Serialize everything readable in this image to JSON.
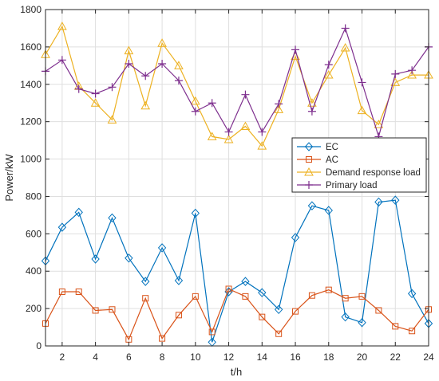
{
  "chart_data": {
    "type": "line",
    "title": "",
    "xlabel": "t/h",
    "ylabel": "Power/kW",
    "xlim": [
      1,
      24
    ],
    "ylim": [
      0,
      1800
    ],
    "x_ticks": [
      2,
      4,
      6,
      8,
      10,
      12,
      14,
      16,
      18,
      20,
      22,
      24
    ],
    "y_ticks": [
      0,
      200,
      400,
      600,
      800,
      1000,
      1200,
      1400,
      1600,
      1800
    ],
    "grid": true,
    "legend_position": "inside right, middle",
    "x": [
      1,
      2,
      3,
      4,
      5,
      6,
      7,
      8,
      9,
      10,
      11,
      12,
      13,
      14,
      15,
      16,
      17,
      18,
      19,
      20,
      21,
      22,
      23,
      24
    ],
    "series": [
      {
        "name": "EC",
        "color": "#0072BD",
        "marker": "diamond",
        "values": [
          455,
          635,
          715,
          465,
          685,
          470,
          345,
          525,
          350,
          710,
          20,
          290,
          345,
          285,
          195,
          580,
          750,
          725,
          155,
          125,
          770,
          780,
          280,
          120
        ]
      },
      {
        "name": "AC",
        "color": "#D95319",
        "marker": "square",
        "values": [
          120,
          290,
          290,
          190,
          195,
          35,
          255,
          40,
          165,
          265,
          75,
          305,
          265,
          155,
          65,
          185,
          270,
          300,
          255,
          265,
          190,
          105,
          80,
          195
        ]
      },
      {
        "name": "Demand response load",
        "color": "#EDB120",
        "marker": "triangle",
        "values": [
          1560,
          1710,
          1390,
          1300,
          1210,
          1580,
          1285,
          1620,
          1500,
          1310,
          1120,
          1105,
          1175,
          1070,
          1265,
          1550,
          1300,
          1450,
          1595,
          1260,
          1185,
          1410,
          1450,
          1450
        ]
      },
      {
        "name": "Primary load",
        "color": "#7E2F8E",
        "marker": "plus",
        "values": [
          1470,
          1530,
          1375,
          1350,
          1385,
          1510,
          1445,
          1510,
          1420,
          1255,
          1300,
          1145,
          1345,
          1145,
          1295,
          1585,
          1255,
          1505,
          1700,
          1410,
          1120,
          1455,
          1475,
          1600
        ]
      }
    ]
  }
}
